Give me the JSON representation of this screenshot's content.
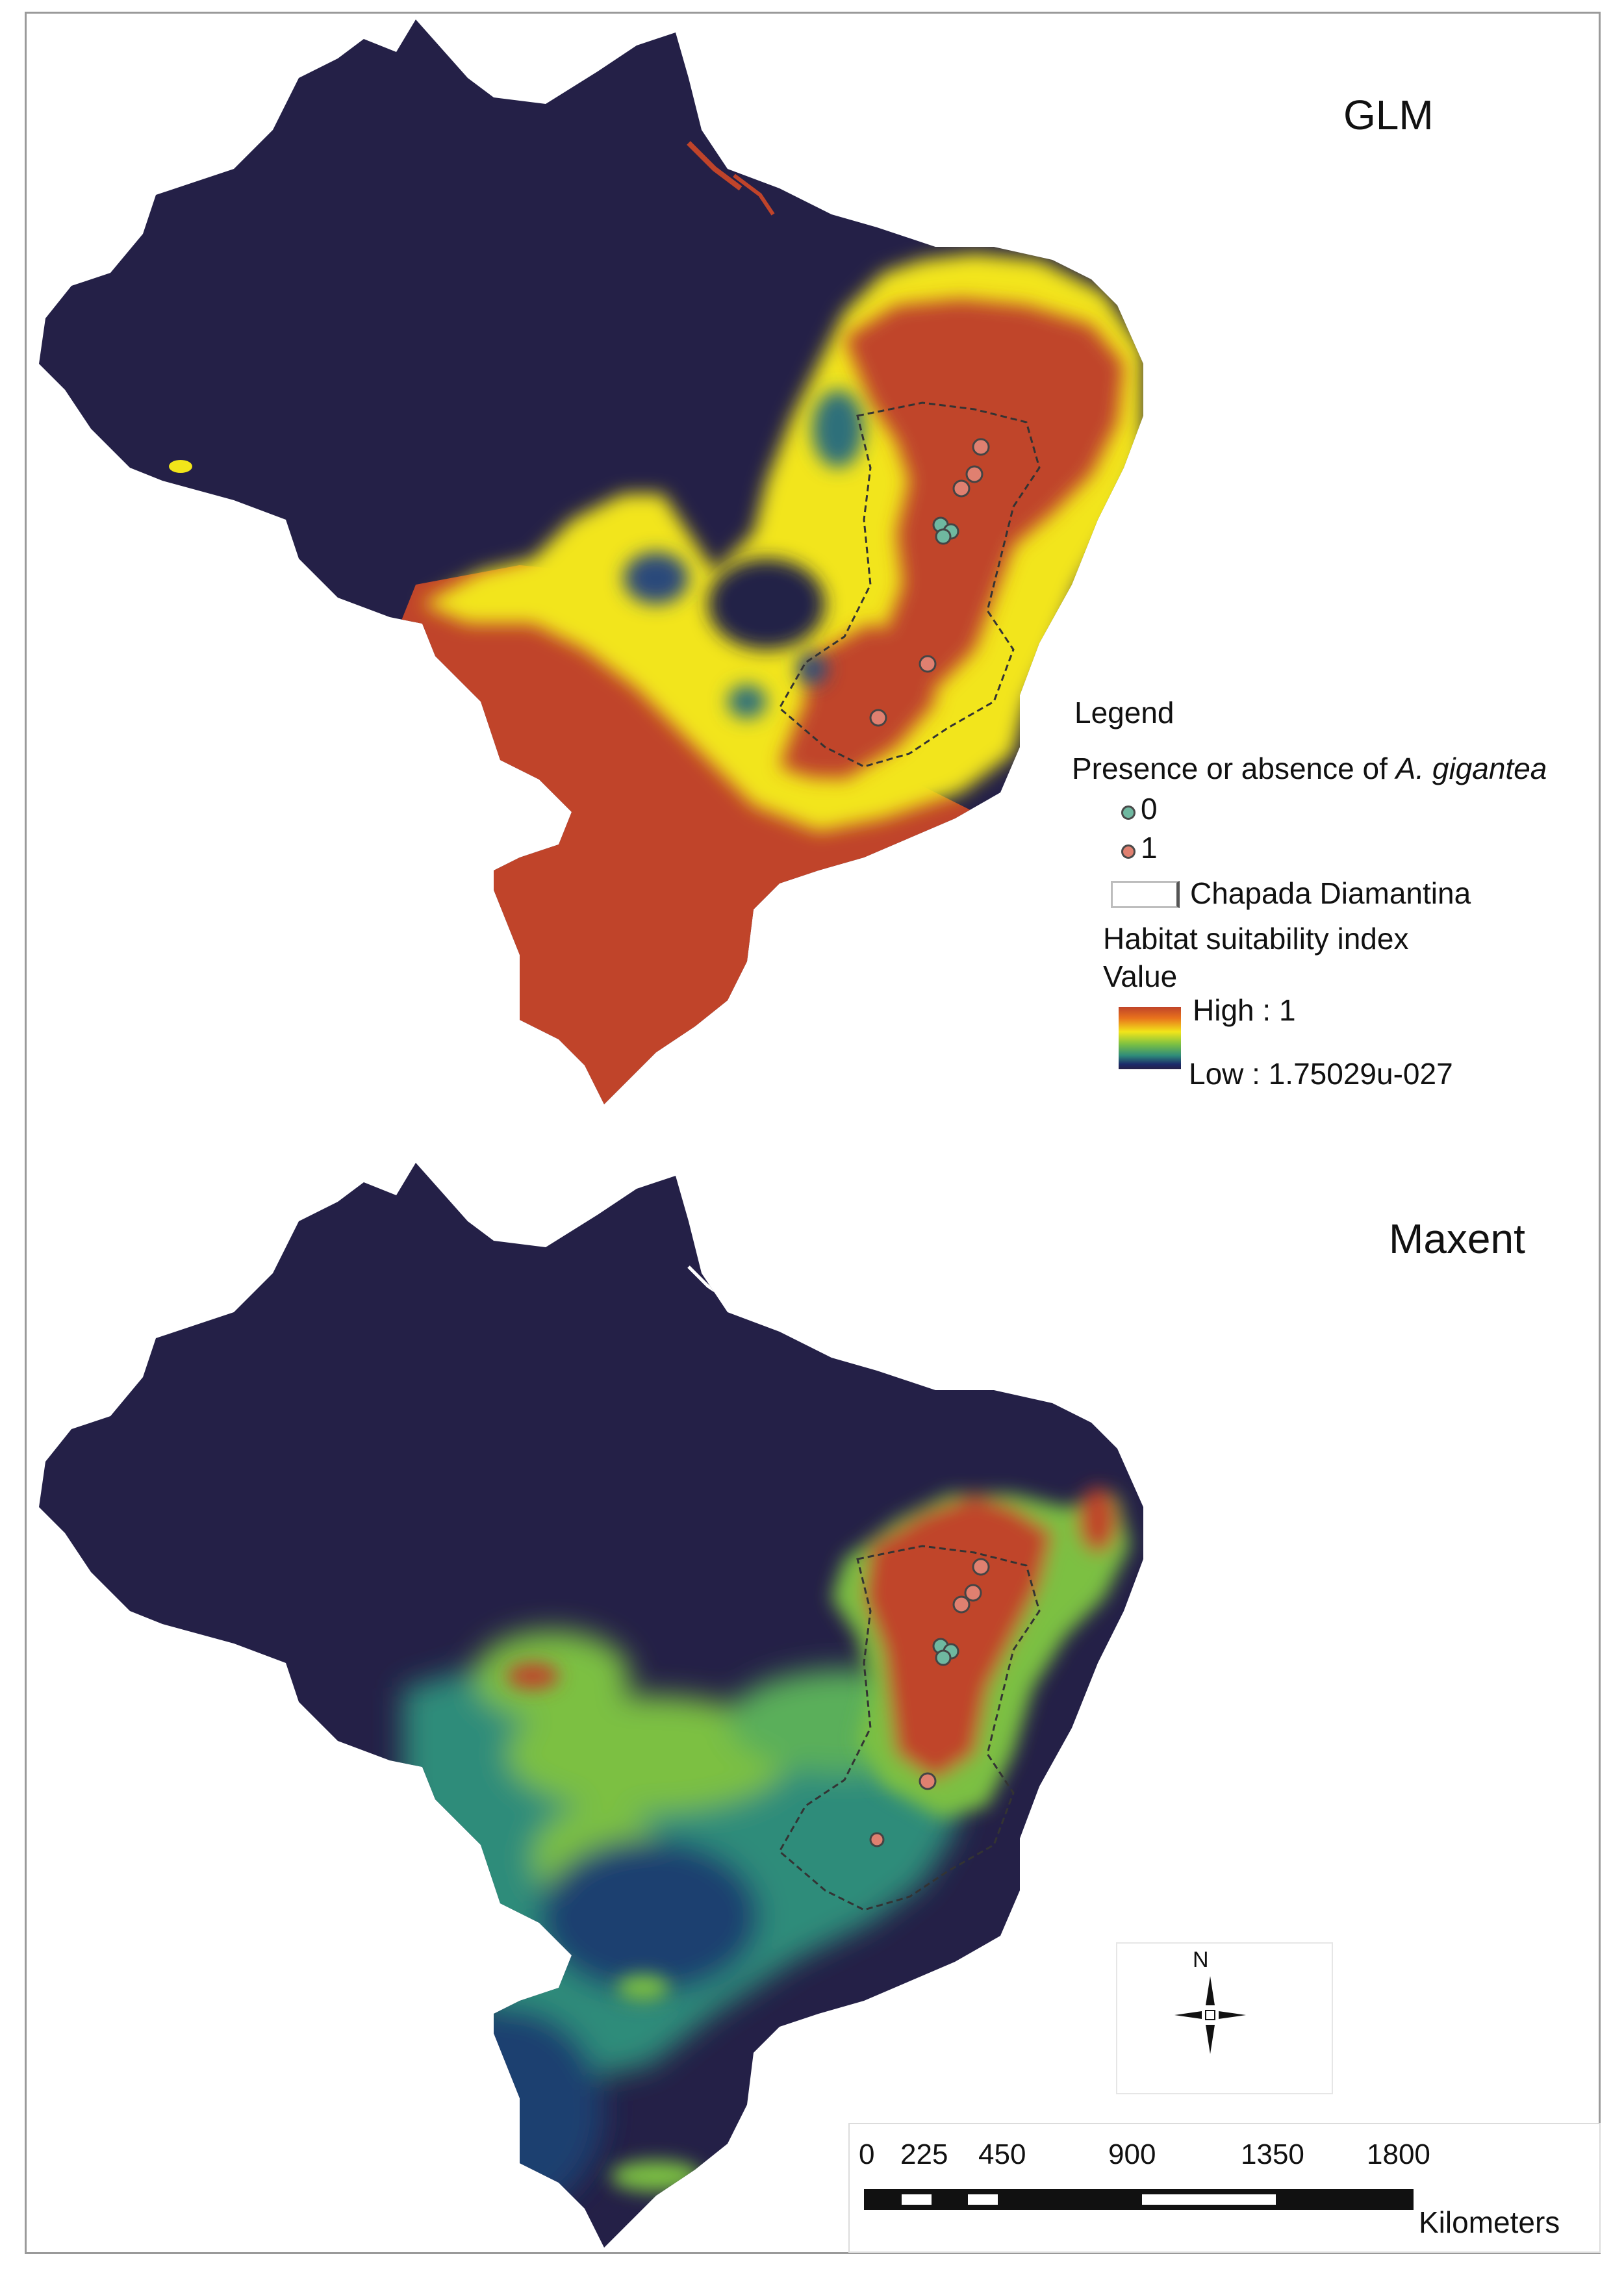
{
  "maps": [
    {
      "title": "GLM"
    },
    {
      "title": "Maxent"
    }
  ],
  "legend": {
    "title": "Legend",
    "presence_heading_prefix": "Presence or absence of ",
    "presence_heading_species": "A. gigantea",
    "absence_label": "0",
    "presence_label": "1",
    "boundary_label": "Chapada Diamantina",
    "index_heading": "Habitat suitability index",
    "value_heading": "Value",
    "high_label": "High : 1",
    "low_label": "Low : 1.75029u-027",
    "colors": {
      "absence_point": "#6fb8a0",
      "presence_point": "#e08070",
      "high": "#c0442a",
      "mid": "#f2e51a",
      "low": "#242047"
    }
  },
  "compass": {
    "north_label": "N"
  },
  "scale_bar": {
    "ticks": [
      "0",
      "225",
      "450",
      "900",
      "1350",
      "1800"
    ],
    "units": "Kilometers"
  }
}
